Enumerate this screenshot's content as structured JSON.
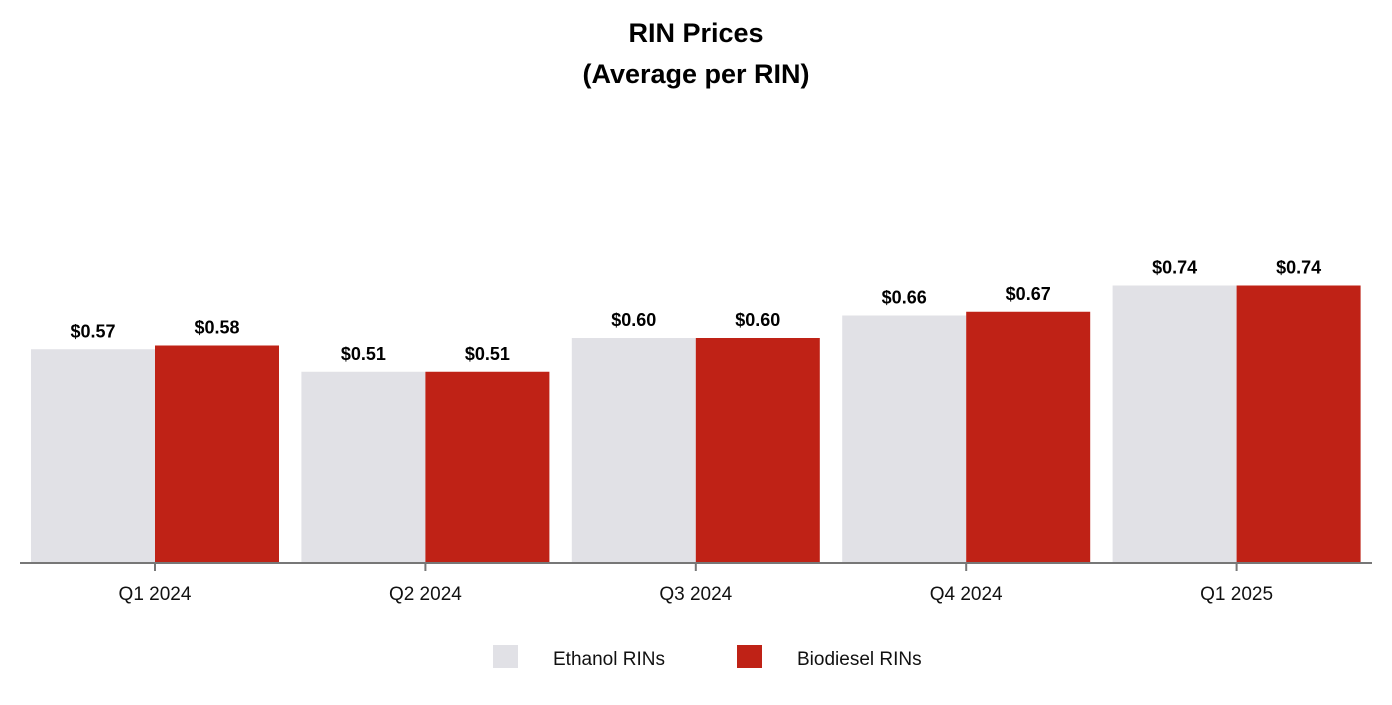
{
  "chart_data": {
    "type": "bar",
    "title": "RIN Prices",
    "subtitle": "(Average per RIN)",
    "categories": [
      "Q1 2024",
      "Q2 2024",
      "Q3 2024",
      "Q4 2024",
      "Q1 2025"
    ],
    "series": [
      {
        "name": "Ethanol RINs",
        "values": [
          0.57,
          0.51,
          0.6,
          0.66,
          0.74
        ],
        "labels": [
          "$0.57",
          "$0.51",
          "$0.60",
          "$0.66",
          "$0.74"
        ],
        "color": "#e1e1e6"
      },
      {
        "name": "Biodiesel RINs",
        "values": [
          0.58,
          0.51,
          0.6,
          0.67,
          0.74
        ],
        "labels": [
          "$0.58",
          "$0.51",
          "$0.60",
          "$0.67",
          "$0.74"
        ],
        "color": "#bf2216"
      }
    ],
    "ylim": [
      0,
      1.2
    ],
    "grid": false,
    "legend": "bottom-center",
    "axis_color": "#777777"
  }
}
